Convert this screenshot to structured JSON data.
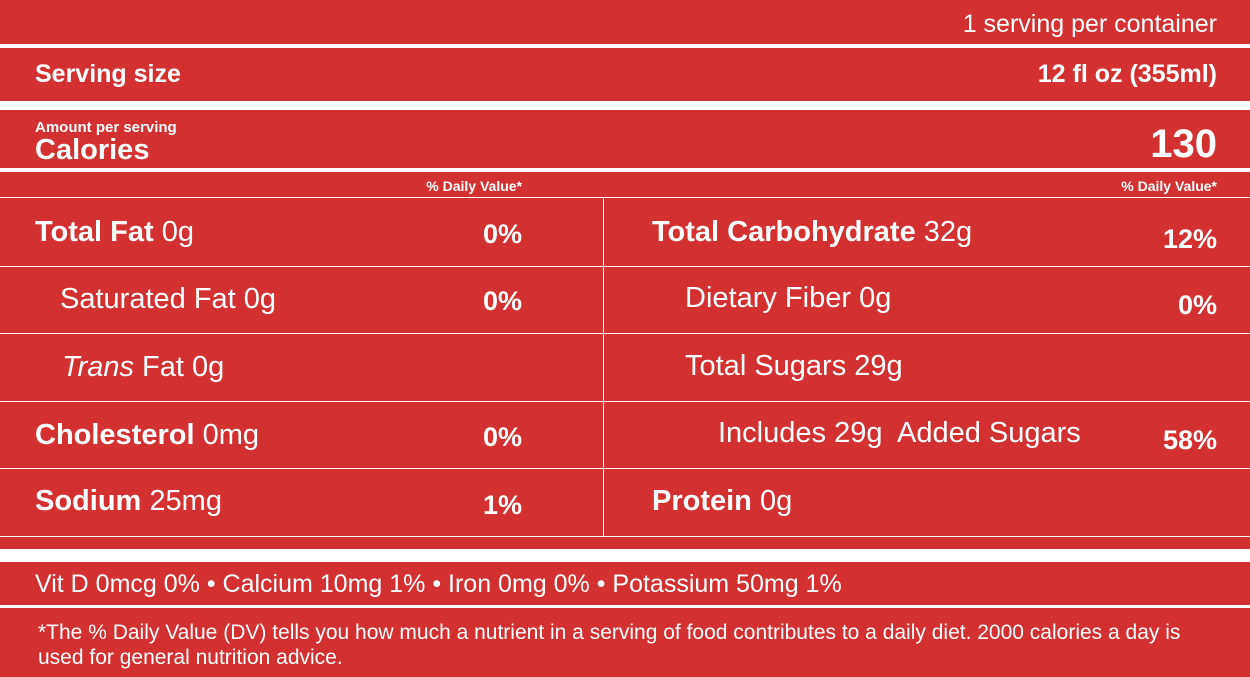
{
  "header": {
    "servings": "1 serving per container",
    "serving_size_label": "Serving size",
    "serving_size": "12 fl oz (355ml)"
  },
  "calories": {
    "amount_label": "Amount per serving",
    "label": "Calories",
    "value": "130"
  },
  "daily_value_heading": "% Daily Value*",
  "left_rows": [
    {
      "name": "Total Fat",
      "amount": "0g",
      "dv": "0%"
    },
    {
      "name": "Saturated Fat",
      "amount": "0g",
      "dv": "0%"
    },
    {
      "italic": "Trans",
      "name": "Fat",
      "amount": "0g"
    },
    {
      "name": "Cholesterol",
      "amount": "0mg",
      "dv": "0%"
    },
    {
      "name": "Sodium",
      "amount": "25mg",
      "dv": "1%"
    }
  ],
  "right_rows": [
    {
      "name": "Total Carbohydrate",
      "amount": "32g",
      "dv": "12%"
    },
    {
      "name": "Dietary Fiber",
      "amount": "0g",
      "dv": "0%"
    },
    {
      "name": "Total Sugars",
      "amount": "29g"
    },
    {
      "name": "Includes 29g  Added Sugars",
      "dv": "58%"
    },
    {
      "name": "Protein",
      "amount": "0g"
    }
  ],
  "vitamins": "Vit D 0mcg 0% • Calcium 10mg 1% • Iron 0mg 0% • Potassium 50mg 1%",
  "footnote": "*The % Daily Value (DV) tells you how much a nutrient in a serving of food contributes to a daily diet. 2000 calories a day is used for general nutrition advice."
}
